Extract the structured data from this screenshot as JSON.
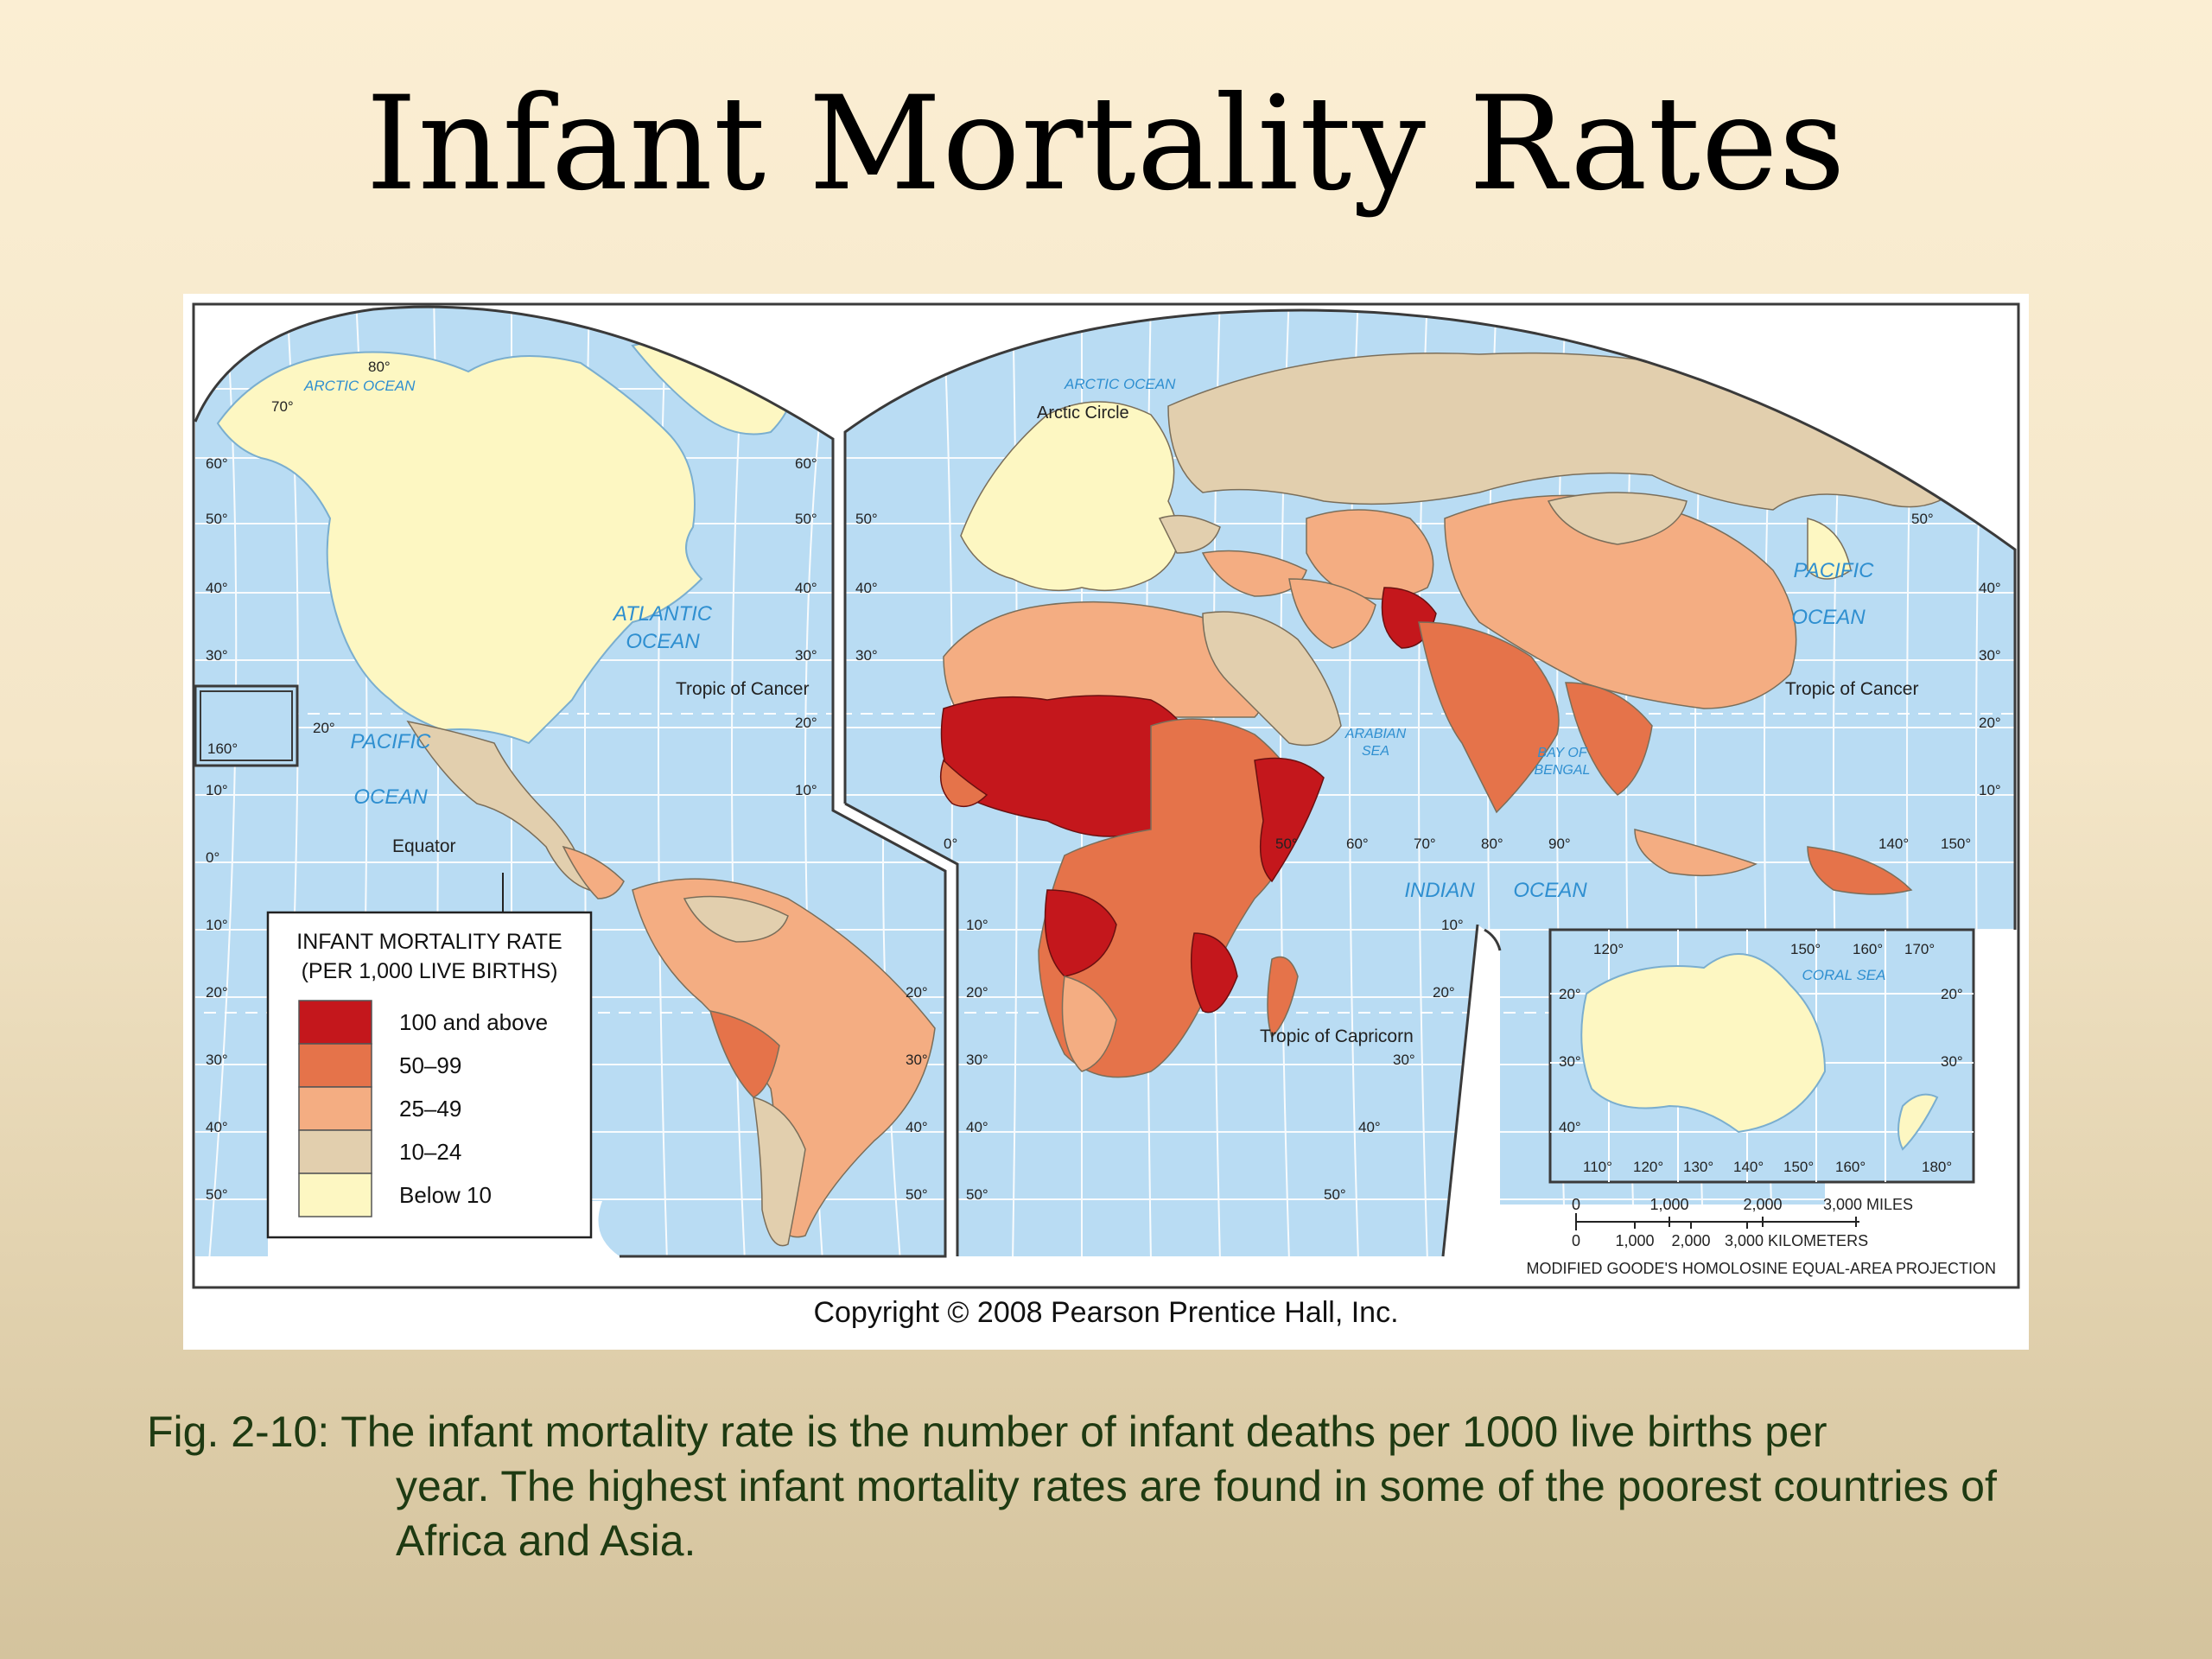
{
  "slide": {
    "title": "Infant Mortality Rates",
    "caption_lead": "Fig. 2-10: The infant mortality rate is the number of infant deaths per 1000 live births per",
    "caption_rest": "year.  The highest infant mortality rates are found in some of the poorest countries of Africa and Asia."
  },
  "map": {
    "copyright": "Copyright © 2008 Pearson Prentice Hall, Inc.",
    "projection": "MODIFIED GOODE'S HOMOLOSINE EQUAL-AREA PROJECTION",
    "labels": {
      "arctic_ocean_w": "ARCTIC OCEAN",
      "arctic_ocean_e": "ARCTIC OCEAN",
      "arctic_circle": "Arctic Circle",
      "atlantic_1": "ATLANTIC",
      "atlantic_2": "OCEAN",
      "pacific_w_1": "PACIFIC",
      "pacific_w_2": "OCEAN",
      "pacific_e_1": "PACIFIC",
      "pacific_e_2": "OCEAN",
      "indian_1": "INDIAN",
      "indian_2": "OCEAN",
      "arabian_1": "ARABIAN",
      "arabian_2": "SEA",
      "bengal_1": "BAY OF",
      "bengal_2": "BENGAL",
      "coral_sea": "CORAL   SEA",
      "tropic_cancer_w": "Tropic of Cancer",
      "tropic_cancer_e": "Tropic of Cancer",
      "tropic_capricorn": "Tropic of Capricorn",
      "equator": "Equator"
    },
    "legend": {
      "title_1": "INFANT MORTALITY RATE",
      "title_2": "(PER 1,000 LIVE BIRTHS)",
      "items": [
        {
          "label": "100 and above",
          "color": "#c4171c"
        },
        {
          "label": "50–99",
          "color": "#e5734a"
        },
        {
          "label": "25–49",
          "color": "#f4ad82"
        },
        {
          "label": "10–24",
          "color": "#e2cfae"
        },
        {
          "label": "Below 10",
          "color": "#fdf7c2"
        }
      ]
    },
    "scale": {
      "miles": [
        "0",
        "1,000",
        "2,000",
        "3,000 MILES"
      ],
      "km": [
        "0",
        "1,000",
        "2,000",
        "3,000 KILOMETERS"
      ]
    },
    "colors": {
      "ocean": "#b9dcf3",
      "grid": "#ffffff",
      "border": "#3a3a3a",
      "label_blue": "#2f8fd0"
    },
    "grid_labels": {
      "lat_w_left": [
        "80°",
        "70°",
        "60°",
        "50°",
        "40°",
        "30°",
        "20°",
        "10°",
        "0°",
        "10°",
        "20°",
        "30°",
        "40°",
        "50°"
      ],
      "lon_extra": [
        "160°"
      ],
      "lat_w_right": [
        "60°",
        "50°",
        "40°",
        "30°",
        "20°",
        "10°",
        "20°",
        "30°",
        "40°",
        "50°"
      ],
      "lat_e_left": [
        "50°",
        "40°",
        "30°",
        "0°",
        "10°",
        "20°",
        "30°",
        "40°",
        "50°"
      ],
      "lat_e_right": [
        "50°",
        "40°",
        "30°",
        "20°",
        "10°",
        "10°",
        "20°",
        "30°",
        "40°",
        "50°"
      ],
      "lon_e": [
        "50°",
        "60°",
        "70°",
        "80°",
        "90°",
        "140°",
        "150°"
      ],
      "inset_top": [
        "120°",
        "150°",
        "160°",
        "170°"
      ],
      "inset_bottom": [
        "110°",
        "120°",
        "130°",
        "140°",
        "150°",
        "160°",
        "180°"
      ],
      "inset_lat_left": [
        "20°",
        "30°",
        "40°"
      ],
      "inset_lat_right": [
        "20°",
        "30°"
      ]
    }
  }
}
